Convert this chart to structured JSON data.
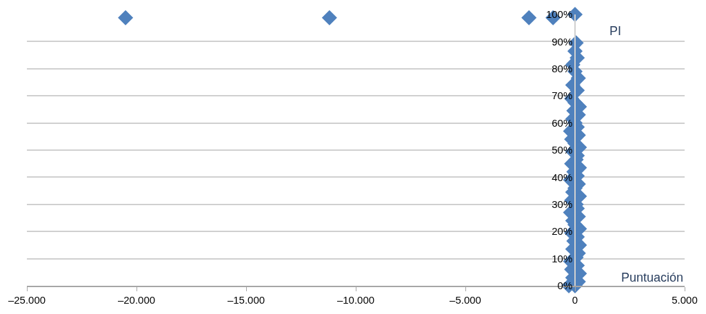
{
  "chart_data": {
    "type": "scatter",
    "xlabel": "Puntuación",
    "ylabel": "PI",
    "x": [
      -20500,
      -11200,
      -2100,
      -1000,
      0,
      -280,
      0,
      150,
      -100,
      200,
      -150,
      100,
      -200,
      50,
      150,
      -100,
      200,
      -50,
      100,
      -150,
      200,
      0,
      -100,
      150,
      -200,
      100,
      50,
      -150,
      200,
      -100,
      0,
      150,
      -200,
      100,
      -50,
      200,
      -150,
      50,
      100,
      -100,
      200,
      0,
      -150,
      150,
      -200,
      100,
      0,
      -100,
      150,
      -50,
      200,
      0,
      -150,
      100,
      -100,
      150,
      0,
      -100,
      100,
      0,
      50
    ],
    "values": [
      98.8,
      98.8,
      98.8,
      98.8,
      100,
      0,
      0,
      1.5,
      3,
      4.5,
      6,
      7.5,
      9,
      10.5,
      12,
      13.5,
      15,
      16.5,
      18,
      19.5,
      21,
      22.5,
      24,
      25.5,
      27,
      28.5,
      30,
      31.5,
      33,
      34.5,
      36,
      37.5,
      39,
      40.5,
      42,
      43.5,
      45,
      46.5,
      48,
      49.5,
      51,
      52.5,
      54,
      55.5,
      57,
      58.5,
      60,
      61.5,
      63,
      64.5,
      66,
      67.5,
      69,
      72,
      74,
      76.5,
      79,
      81.5,
      84,
      86.5,
      89.5
    ],
    "color": "#4f81bd",
    "marker": "diamond",
    "grid": "y",
    "xlim": [
      -25000,
      5000
    ],
    "xticks": [
      {
        "value": -25000,
        "label": "–25.000"
      },
      {
        "value": -20000,
        "label": "–20.000"
      },
      {
        "value": -15000,
        "label": "–15.000"
      },
      {
        "value": -10000,
        "label": "–10.000"
      },
      {
        "value": -5000,
        "label": "–5.000"
      },
      0,
      {
        "value": 5000,
        "label": "5.000"
      }
    ],
    "ylim": [
      0,
      100
    ],
    "yticks": [
      {
        "value": 0,
        "label": "0%"
      },
      {
        "value": 10,
        "label": "10%"
      },
      {
        "value": 20,
        "label": "20%"
      },
      {
        "value": 30,
        "label": "30%"
      },
      {
        "value": 40,
        "label": "40%"
      },
      {
        "value": 50,
        "label": "50%"
      },
      {
        "value": 60,
        "label": "60%"
      },
      {
        "value": 70,
        "label": "70%"
      },
      {
        "value": 80,
        "label": "80%"
      },
      {
        "value": 90,
        "label": "90%"
      },
      {
        "value": 100,
        "label": "100%"
      }
    ]
  }
}
